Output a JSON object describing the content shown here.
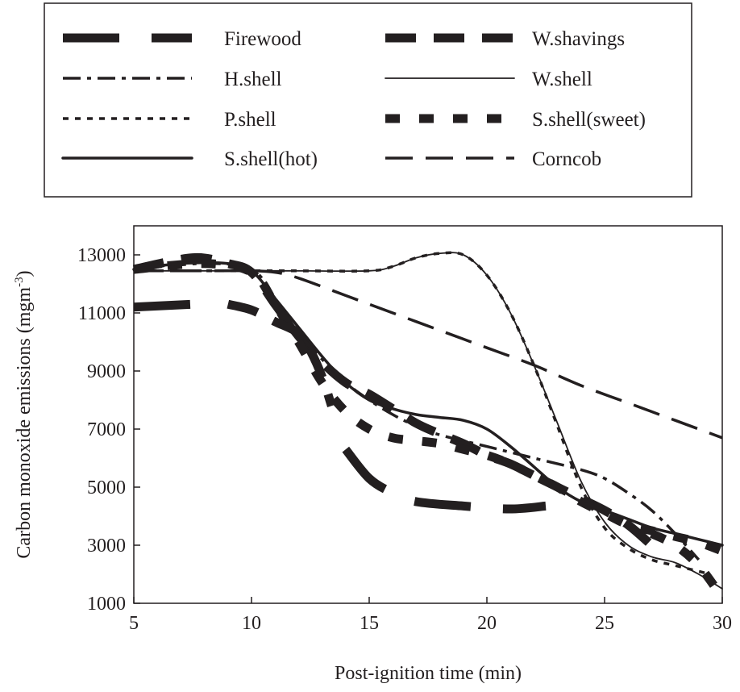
{
  "chart_data": {
    "type": "line",
    "title": "",
    "xlabel": "Post-ignition time (min)",
    "ylabel_main": "Carbon monoxide emissions (mgm",
    "ylabel_sup": "-3",
    "ylabel_close": ")",
    "xlim": [
      5,
      30
    ],
    "ylim": [
      1000,
      14000
    ],
    "x_ticks": [
      5,
      10,
      15,
      20,
      25,
      30
    ],
    "y_ticks": [
      1000,
      3000,
      5000,
      7000,
      9000,
      11000,
      13000
    ],
    "grid": false,
    "legend_position": "top",
    "series": [
      {
        "name": "Firewood",
        "style": "heavy-long-dash",
        "points": [
          [
            5,
            11200
          ],
          [
            7.5,
            11300
          ],
          null,
          [
            14,
            6300
          ],
          [
            15,
            5300
          ],
          [
            16,
            4800
          ],
          [
            17,
            4500
          ],
          [
            19,
            4350
          ],
          [
            21,
            4250
          ],
          [
            22.5,
            4350
          ]
        ]
      },
      {
        "name": "W.shavings",
        "style": "heavy-dash",
        "points": [
          [
            5,
            12500
          ],
          [
            7.5,
            12900
          ],
          [
            9,
            12700
          ],
          [
            10,
            12400
          ],
          [
            11,
            11300
          ],
          [
            12,
            10200
          ],
          [
            13,
            9300
          ],
          [
            14,
            8600
          ],
          [
            15,
            8200
          ],
          [
            16,
            7700
          ],
          [
            17,
            7200
          ],
          [
            17.8,
            6900
          ],
          [
            19,
            6500
          ],
          [
            20,
            6100
          ],
          [
            21,
            5800
          ],
          [
            22,
            5400
          ],
          [
            23,
            5000
          ],
          [
            24,
            4600
          ],
          [
            25,
            4200
          ],
          [
            26,
            3700
          ],
          [
            27,
            3000
          ]
        ]
      },
      {
        "name": "H.shell",
        "style": "dash-dot",
        "points": [
          [
            5,
            12500
          ],
          [
            8,
            12700
          ],
          [
            10,
            12500
          ],
          [
            11,
            11500
          ],
          [
            12,
            10300
          ],
          [
            13,
            9400
          ],
          [
            14,
            8600
          ],
          [
            15,
            8000
          ],
          [
            16,
            7500
          ],
          [
            17,
            7100
          ],
          [
            18,
            6800
          ],
          [
            20,
            6400
          ],
          [
            22,
            6000
          ],
          [
            24,
            5600
          ],
          [
            25,
            5300
          ],
          [
            26,
            4800
          ],
          [
            27,
            4200
          ],
          [
            28,
            3400
          ],
          [
            29,
            2500
          ]
        ]
      },
      {
        "name": "W.shell",
        "style": "thin-solid",
        "points": [
          [
            5,
            12450
          ],
          [
            8,
            12450
          ],
          [
            10,
            12450
          ],
          [
            12,
            12450
          ],
          [
            15,
            12450
          ],
          [
            16,
            12600
          ],
          [
            17,
            12900
          ],
          [
            18,
            13050
          ],
          [
            19,
            13000
          ],
          [
            20,
            12300
          ],
          [
            21,
            11000
          ],
          [
            22,
            9200
          ],
          [
            23,
            7200
          ],
          [
            24,
            5200
          ],
          [
            25,
            3800
          ],
          [
            26,
            3000
          ],
          [
            27,
            2600
          ],
          [
            28,
            2400
          ],
          [
            29,
            2000
          ],
          [
            30,
            1500
          ]
        ]
      },
      {
        "name": "P.shell",
        "style": "dot",
        "points": [
          [
            5,
            12450
          ],
          [
            8,
            12450
          ],
          [
            10,
            12450
          ],
          [
            12,
            12450
          ],
          [
            15,
            12450
          ],
          [
            16,
            12600
          ],
          [
            17,
            12900
          ],
          [
            18,
            13050
          ],
          [
            19,
            13000
          ],
          [
            20,
            12300
          ],
          [
            21,
            11000
          ],
          [
            22,
            9200
          ],
          [
            23,
            7100
          ],
          [
            24,
            5000
          ],
          [
            25,
            3600
          ],
          [
            26,
            2900
          ],
          [
            27,
            2500
          ],
          [
            28,
            2300
          ],
          [
            29,
            2100
          ],
          [
            29.5,
            2000
          ]
        ]
      },
      {
        "name": "S.shell(sweet)",
        "style": "heavy-short-dash",
        "points": [
          [
            5,
            12500
          ],
          [
            8,
            12700
          ],
          [
            10,
            12400
          ],
          [
            11,
            11300
          ],
          [
            12,
            10000
          ],
          [
            13,
            8600
          ],
          [
            14,
            7600
          ],
          [
            15,
            7000
          ],
          [
            16,
            6700
          ],
          [
            17,
            6600
          ],
          [
            18,
            6500
          ],
          [
            19,
            6300
          ],
          [
            20,
            6100
          ],
          [
            21,
            5800
          ],
          [
            22,
            5400
          ],
          [
            23,
            5000
          ],
          [
            24,
            4500
          ],
          [
            25,
            4100
          ],
          [
            26,
            3700
          ],
          [
            27,
            3500
          ],
          [
            28,
            3300
          ],
          [
            29,
            3100
          ],
          [
            30,
            2800
          ]
        ]
      },
      {
        "name": "S.shell(hot)",
        "style": "thick-solid",
        "points": [
          [
            5,
            12500
          ],
          [
            7,
            12700
          ],
          [
            9,
            12700
          ],
          [
            10,
            12450
          ],
          [
            11,
            11500
          ],
          [
            12,
            10500
          ],
          [
            13,
            9500
          ],
          [
            14,
            8600
          ],
          [
            15,
            8000
          ],
          [
            16,
            7700
          ],
          [
            17,
            7500
          ],
          [
            18,
            7400
          ],
          [
            19,
            7300
          ],
          [
            20,
            7000
          ],
          [
            21,
            6400
          ],
          [
            22,
            5700
          ],
          [
            23,
            5000
          ],
          [
            24,
            4500
          ],
          [
            25,
            4200
          ],
          [
            26,
            3900
          ],
          [
            27,
            3600
          ],
          [
            28,
            3400
          ],
          [
            29,
            3200
          ],
          [
            30,
            3000
          ]
        ]
      },
      {
        "name": "Corncob",
        "style": "long-dash",
        "points": [
          [
            5,
            12450
          ],
          [
            8,
            12450
          ],
          [
            10,
            12450
          ],
          [
            11,
            12400
          ],
          [
            12,
            12200
          ],
          [
            14,
            11600
          ],
          [
            16,
            11000
          ],
          [
            18,
            10400
          ],
          [
            20,
            9800
          ],
          [
            22,
            9200
          ],
          [
            24,
            8500
          ],
          [
            26,
            7900
          ],
          [
            28,
            7300
          ],
          [
            30,
            6700
          ]
        ]
      },
      {
        "name": "",
        "style": "heavy-dash",
        "points": [
          [
            9,
            11300
          ],
          [
            10,
            11100
          ],
          [
            11,
            10700
          ],
          [
            12,
            10300
          ],
          [
            12.5,
            9700
          ],
          [
            13,
            8800
          ],
          [
            13.4,
            7800
          ]
        ]
      },
      {
        "name": "",
        "style": "heavy-short-dash",
        "points": [
          [
            27,
            3400
          ],
          [
            28,
            3000
          ],
          [
            29,
            2300
          ],
          [
            30,
            1200
          ]
        ]
      }
    ]
  }
}
